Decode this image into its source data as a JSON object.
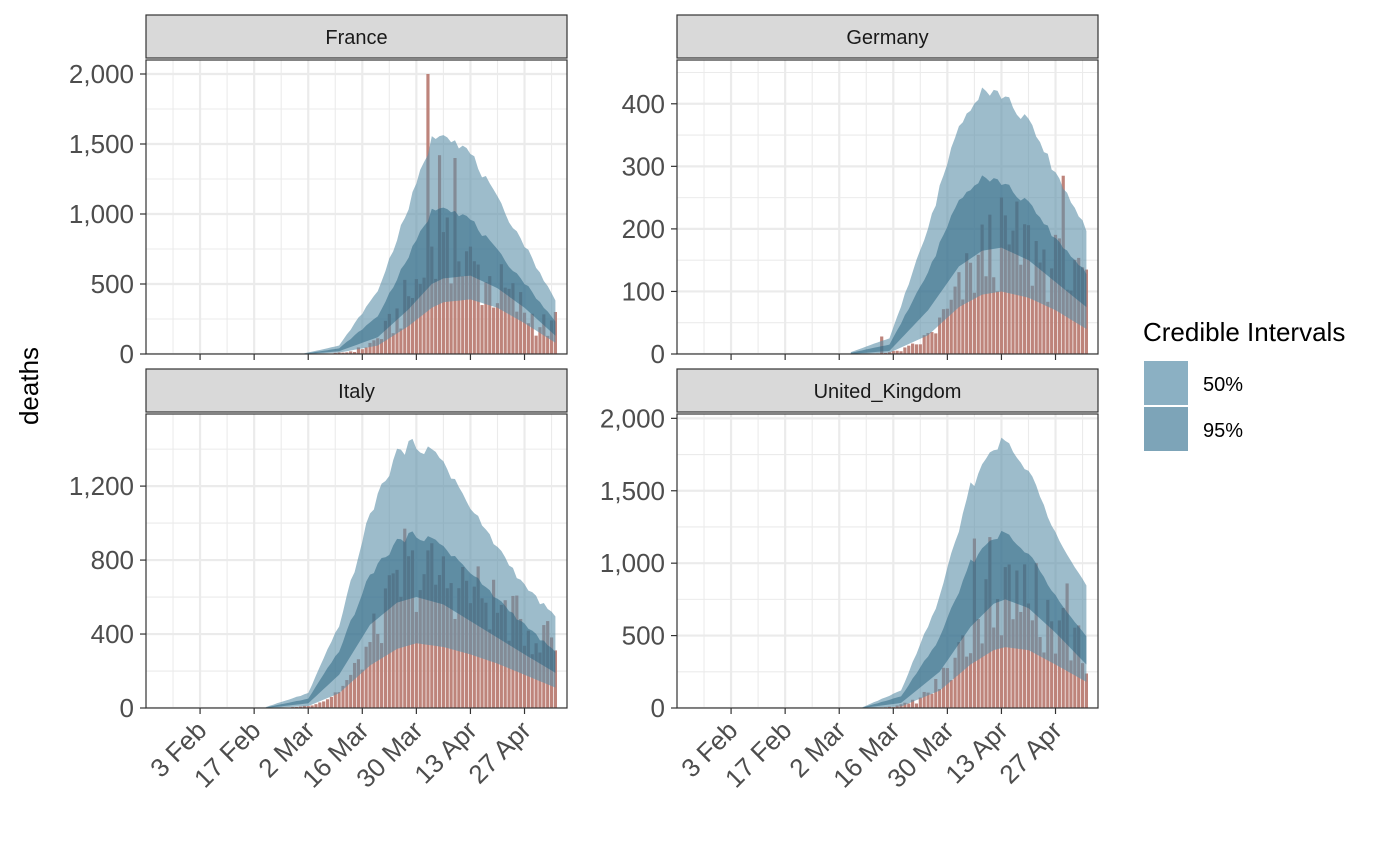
{
  "chart_data": {
    "type": "area",
    "ylabel": "deaths",
    "xlabel": "",
    "legend": {
      "title": "Credible Intervals",
      "placement": "right",
      "entries": [
        {
          "label": "50%",
          "color": "#8bb0c3"
        },
        {
          "label": "95%",
          "color": "#7da4b8"
        }
      ]
    },
    "colors": {
      "bar": "#b97970",
      "outer_band": "#5c90a8",
      "inner_band": "#2c6683",
      "grid": "#ebebeb",
      "strip_bg": "#d9d9d9"
    },
    "x_start": "2020-01-20",
    "x_end": "2020-05-08",
    "x_ticks": [
      {
        "date": "2020-02-03",
        "label": "3 Feb"
      },
      {
        "date": "2020-02-17",
        "label": "17 Feb"
      },
      {
        "date": "2020-03-02",
        "label": "2 Mar"
      },
      {
        "date": "2020-03-16",
        "label": "16 Mar"
      },
      {
        "date": "2020-03-30",
        "label": "30 Mar"
      },
      {
        "date": "2020-04-13",
        "label": "13 Apr"
      },
      {
        "date": "2020-04-27",
        "label": "27 Apr"
      }
    ],
    "panels": [
      {
        "name": "France",
        "ylim": [
          0,
          2100
        ],
        "y_ticks": [
          {
            "v": 0,
            "label": "0"
          },
          {
            "v": 500,
            "label": "500"
          },
          {
            "v": 1000,
            "label": "1,000"
          },
          {
            "v": 1500,
            "label": "1,500"
          },
          {
            "v": 2000,
            "label": "2,000"
          }
        ],
        "peak_date": "2020-04-06",
        "peak_median": 660,
        "rise_sd": 9,
        "fall_sd": 17,
        "noise": 0.5,
        "end_date": "2020-05-05",
        "bars_start": "2020-03-08",
        "band_95": [
          {
            "date": "2020-03-01",
            "lo": 0,
            "hi": 5
          },
          {
            "date": "2020-03-10",
            "lo": 10,
            "hi": 60
          },
          {
            "date": "2020-03-20",
            "lo": 60,
            "hi": 450
          },
          {
            "date": "2020-03-28",
            "lo": 200,
            "hi": 1050
          },
          {
            "date": "2020-04-03",
            "lo": 330,
            "hi": 1530
          },
          {
            "date": "2020-04-06",
            "lo": 370,
            "hi": 1600
          },
          {
            "date": "2020-04-13",
            "lo": 390,
            "hi": 1430
          },
          {
            "date": "2020-04-20",
            "lo": 330,
            "hi": 1100
          },
          {
            "date": "2020-04-27",
            "lo": 220,
            "hi": 780
          },
          {
            "date": "2020-05-05",
            "lo": 80,
            "hi": 380
          }
        ],
        "band_50": [
          {
            "date": "2020-03-01",
            "lo": 0,
            "hi": 3
          },
          {
            "date": "2020-03-10",
            "lo": 20,
            "hi": 40
          },
          {
            "date": "2020-03-20",
            "lo": 120,
            "hi": 270
          },
          {
            "date": "2020-03-28",
            "lo": 320,
            "hi": 700
          },
          {
            "date": "2020-04-03",
            "lo": 500,
            "hi": 1020
          },
          {
            "date": "2020-04-06",
            "lo": 540,
            "hi": 1070
          },
          {
            "date": "2020-04-13",
            "lo": 560,
            "hi": 960
          },
          {
            "date": "2020-04-20",
            "lo": 470,
            "hi": 730
          },
          {
            "date": "2020-04-27",
            "lo": 330,
            "hi": 510
          },
          {
            "date": "2020-05-05",
            "lo": 130,
            "hi": 230
          }
        ],
        "spikes": [
          {
            "date": "2020-04-02",
            "value": 2000
          },
          {
            "date": "2020-04-05",
            "value": 1420
          },
          {
            "date": "2020-04-09",
            "value": 1400
          },
          {
            "date": "2020-05-05",
            "value": 300
          }
        ]
      },
      {
        "name": "Germany",
        "ylim": [
          0,
          470
        ],
        "y_ticks": [
          {
            "v": 0,
            "label": "0"
          },
          {
            "v": 100,
            "label": "100"
          },
          {
            "v": 200,
            "label": "200"
          },
          {
            "v": 300,
            "label": "300"
          },
          {
            "v": 400,
            "label": "400"
          }
        ],
        "peak_date": "2020-04-13",
        "peak_median": 175,
        "rise_sd": 10,
        "fall_sd": 20,
        "noise": 0.45,
        "end_date": "2020-05-05",
        "bars_start": "2020-03-12",
        "band_95": [
          {
            "date": "2020-03-05",
            "lo": 0,
            "hi": 3
          },
          {
            "date": "2020-03-15",
            "lo": 2,
            "hi": 25
          },
          {
            "date": "2020-03-25",
            "lo": 30,
            "hi": 200
          },
          {
            "date": "2020-04-02",
            "lo": 75,
            "hi": 370
          },
          {
            "date": "2020-04-08",
            "lo": 95,
            "hi": 425
          },
          {
            "date": "2020-04-13",
            "lo": 100,
            "hi": 415
          },
          {
            "date": "2020-04-20",
            "lo": 90,
            "hi": 370
          },
          {
            "date": "2020-04-27",
            "lo": 70,
            "hi": 290
          },
          {
            "date": "2020-05-05",
            "lo": 40,
            "hi": 200
          }
        ],
        "band_50": [
          {
            "date": "2020-03-05",
            "lo": 0,
            "hi": 2
          },
          {
            "date": "2020-03-15",
            "lo": 5,
            "hi": 15
          },
          {
            "date": "2020-03-25",
            "lo": 70,
            "hi": 130
          },
          {
            "date": "2020-04-02",
            "lo": 140,
            "hi": 250
          },
          {
            "date": "2020-04-08",
            "lo": 165,
            "hi": 285
          },
          {
            "date": "2020-04-13",
            "lo": 170,
            "hi": 275
          },
          {
            "date": "2020-04-20",
            "lo": 150,
            "hi": 240
          },
          {
            "date": "2020-04-27",
            "lo": 115,
            "hi": 185
          },
          {
            "date": "2020-05-05",
            "lo": 75,
            "hi": 130
          }
        ],
        "spikes": [
          {
            "date": "2020-03-13",
            "value": 28
          },
          {
            "date": "2020-04-29",
            "value": 285
          },
          {
            "date": "2020-05-05",
            "value": 135
          }
        ]
      },
      {
        "name": "Italy",
        "ylim": [
          0,
          1590
        ],
        "y_ticks": [
          {
            "v": 0,
            "label": "0"
          },
          {
            "v": 400,
            "label": "400"
          },
          {
            "v": 800,
            "label": "800"
          },
          {
            "v": 1200,
            "label": "1,200"
          }
        ],
        "peak_date": "2020-03-30",
        "peak_median": 720,
        "rise_sd": 10,
        "fall_sd": 28,
        "noise": 0.3,
        "end_date": "2020-05-05",
        "bars_start": "2020-02-25",
        "band_95": [
          {
            "date": "2020-02-20",
            "lo": 0,
            "hi": 5
          },
          {
            "date": "2020-03-02",
            "lo": 10,
            "hi": 80
          },
          {
            "date": "2020-03-10",
            "lo": 80,
            "hi": 450
          },
          {
            "date": "2020-03-18",
            "lo": 230,
            "hi": 1050
          },
          {
            "date": "2020-03-25",
            "lo": 320,
            "hi": 1380
          },
          {
            "date": "2020-03-30",
            "lo": 350,
            "hi": 1430
          },
          {
            "date": "2020-04-06",
            "lo": 330,
            "hi": 1340
          },
          {
            "date": "2020-04-13",
            "lo": 290,
            "hi": 1080
          },
          {
            "date": "2020-04-20",
            "lo": 240,
            "hi": 870
          },
          {
            "date": "2020-04-27",
            "lo": 180,
            "hi": 660
          },
          {
            "date": "2020-05-05",
            "lo": 110,
            "hi": 490
          }
        ],
        "band_50": [
          {
            "date": "2020-02-20",
            "lo": 0,
            "hi": 3
          },
          {
            "date": "2020-03-02",
            "lo": 25,
            "hi": 50
          },
          {
            "date": "2020-03-10",
            "lo": 180,
            "hi": 310
          },
          {
            "date": "2020-03-18",
            "lo": 450,
            "hi": 720
          },
          {
            "date": "2020-03-25",
            "lo": 570,
            "hi": 900
          },
          {
            "date": "2020-03-30",
            "lo": 600,
            "hi": 940
          },
          {
            "date": "2020-04-06",
            "lo": 560,
            "hi": 880
          },
          {
            "date": "2020-04-13",
            "lo": 470,
            "hi": 730
          },
          {
            "date": "2020-04-20",
            "lo": 380,
            "hi": 590
          },
          {
            "date": "2020-04-27",
            "lo": 290,
            "hi": 450
          },
          {
            "date": "2020-05-05",
            "lo": 190,
            "hi": 300
          }
        ],
        "spikes": [
          {
            "date": "2020-03-27",
            "value": 970
          },
          {
            "date": "2020-05-03",
            "value": 470
          }
        ]
      },
      {
        "name": "United_Kingdom",
        "ylim": [
          0,
          2030
        ],
        "y_ticks": [
          {
            "v": 0,
            "label": "0"
          },
          {
            "v": 500,
            "label": "500"
          },
          {
            "v": 1000,
            "label": "1,000"
          },
          {
            "v": 1500,
            "label": "1,500"
          },
          {
            "v": 2000,
            "label": "2,000"
          }
        ],
        "peak_date": "2020-04-14",
        "peak_median": 760,
        "rise_sd": 10,
        "fall_sd": 18,
        "noise": 0.45,
        "end_date": "2020-05-05",
        "bars_start": "2020-03-10",
        "band_95": [
          {
            "date": "2020-03-08",
            "lo": 0,
            "hi": 5
          },
          {
            "date": "2020-03-18",
            "lo": 10,
            "hi": 120
          },
          {
            "date": "2020-03-28",
            "lo": 120,
            "hi": 760
          },
          {
            "date": "2020-04-05",
            "lo": 300,
            "hi": 1520
          },
          {
            "date": "2020-04-11",
            "lo": 400,
            "hi": 1820
          },
          {
            "date": "2020-04-14",
            "lo": 420,
            "hi": 1830
          },
          {
            "date": "2020-04-20",
            "lo": 400,
            "hi": 1630
          },
          {
            "date": "2020-04-27",
            "lo": 300,
            "hi": 1230
          },
          {
            "date": "2020-05-05",
            "lo": 180,
            "hi": 840
          }
        ],
        "band_50": [
          {
            "date": "2020-03-08",
            "lo": 0,
            "hi": 3
          },
          {
            "date": "2020-03-18",
            "lo": 35,
            "hi": 80
          },
          {
            "date": "2020-03-28",
            "lo": 250,
            "hi": 480
          },
          {
            "date": "2020-04-05",
            "lo": 560,
            "hi": 1000
          },
          {
            "date": "2020-04-11",
            "lo": 720,
            "hi": 1190
          },
          {
            "date": "2020-04-14",
            "lo": 750,
            "hi": 1200
          },
          {
            "date": "2020-04-20",
            "lo": 690,
            "hi": 1060
          },
          {
            "date": "2020-04-27",
            "lo": 520,
            "hi": 790
          },
          {
            "date": "2020-05-05",
            "lo": 300,
            "hi": 490
          }
        ],
        "spikes": [
          {
            "date": "2020-04-06",
            "value": 1170
          },
          {
            "date": "2020-04-10",
            "value": 1180
          },
          {
            "date": "2020-04-22",
            "value": 1000
          },
          {
            "date": "2020-04-30",
            "value": 860
          }
        ]
      }
    ]
  }
}
